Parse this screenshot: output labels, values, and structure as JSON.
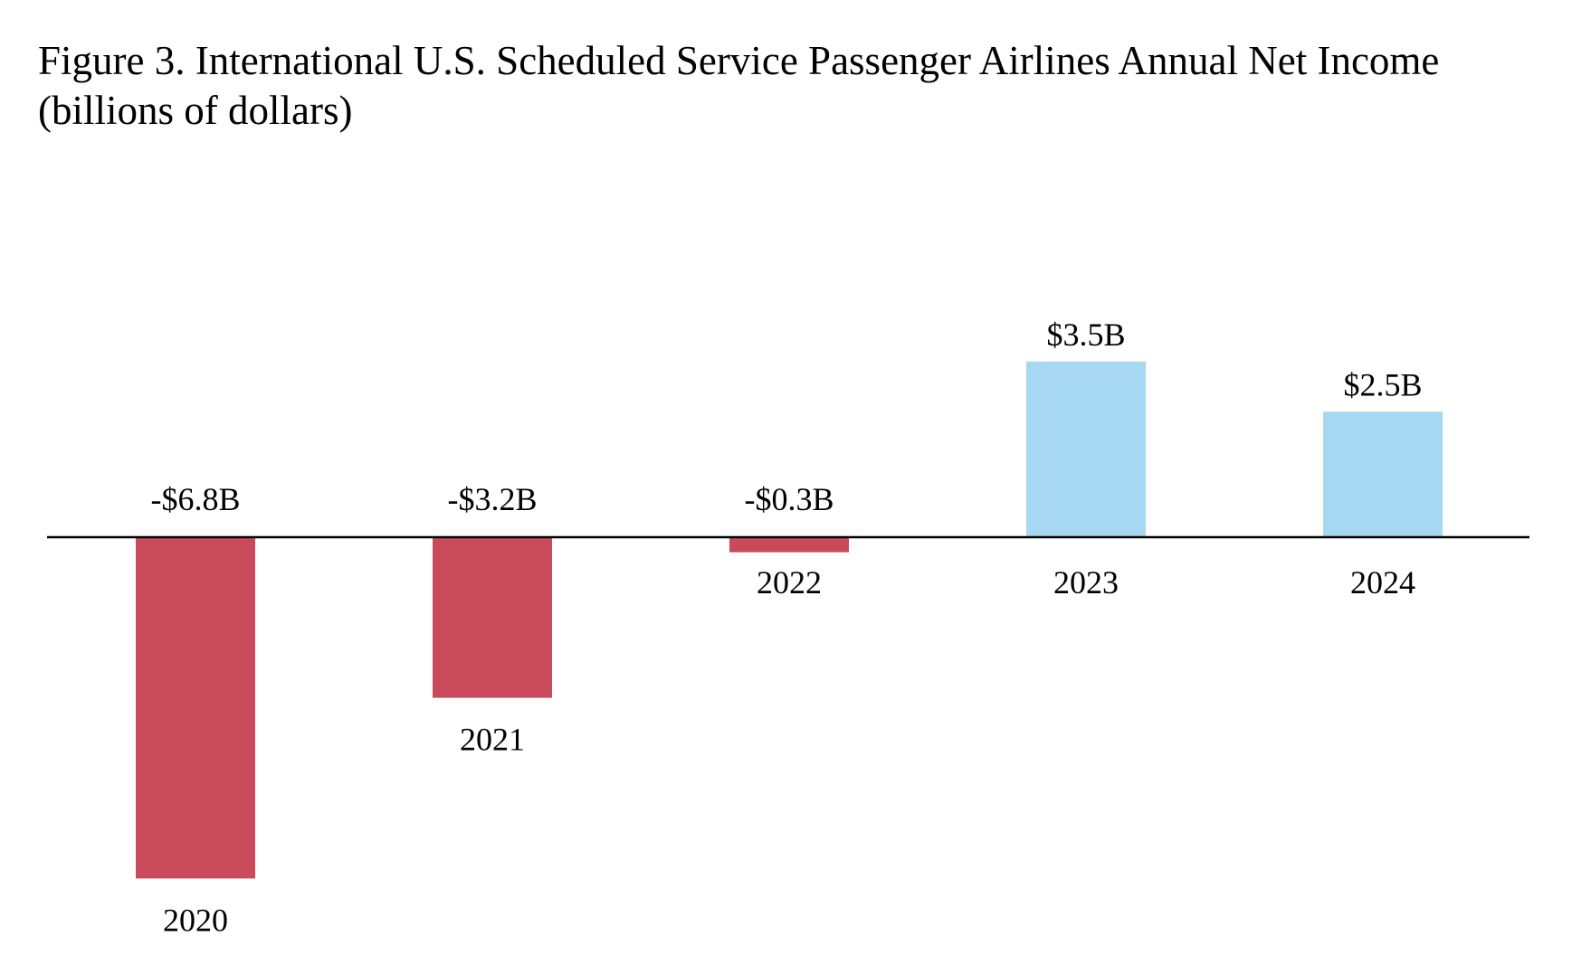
{
  "chart_data": {
    "type": "bar",
    "title": "Figure 3. International U.S. Scheduled Service Passenger Airlines Annual Net Income (billions of dollars)",
    "xlabel": "",
    "ylabel": "",
    "categories": [
      "2020",
      "2021",
      "2022",
      "2023",
      "2024"
    ],
    "values": [
      -6.8,
      -3.2,
      -0.3,
      3.5,
      2.5
    ],
    "data_labels": [
      "-$6.8B",
      "-$3.2B",
      "-$0.3B",
      "$3.5B",
      "$2.5B"
    ],
    "positive_color": "#a6d8f2",
    "negative_color": "#c94a5b",
    "grid": false,
    "legend": "none"
  }
}
